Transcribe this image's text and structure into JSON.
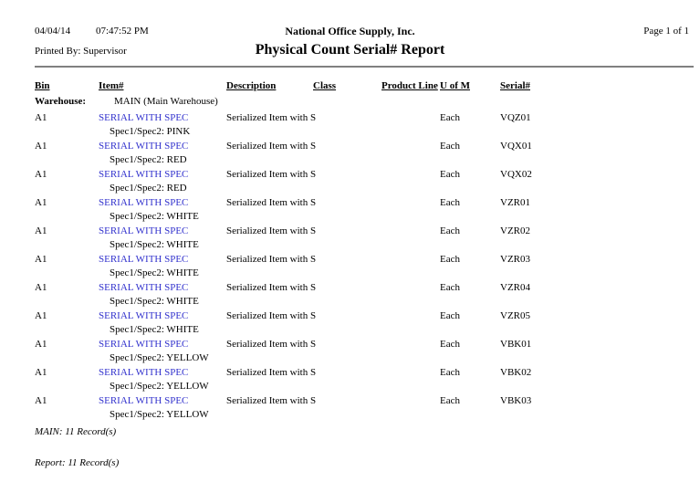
{
  "header": {
    "date": "04/04/14",
    "time": "07:47:52 PM",
    "printed_by": "Printed By: Supervisor",
    "company": "National Office Supply, Inc.",
    "title": "Physical Count Serial# Report",
    "page": "Page 1 of 1"
  },
  "table": {
    "columns": {
      "bin": "Bin",
      "item": "Item#",
      "description": "Description",
      "class": "Class",
      "product_line": "Product Line",
      "uofm": "U of M",
      "serial": "Serial#"
    },
    "warehouse_label": "Warehouse:",
    "warehouse_value": "MAIN (Main Warehouse)",
    "rows": [
      {
        "bin": "A1",
        "item": "SERIAL WITH SPEC",
        "spec": "Spec1/Spec2: PINK",
        "description": "Serialized Item with S",
        "class": "",
        "product_line": "",
        "uofm": "Each",
        "serial": "VQZ01"
      },
      {
        "bin": "A1",
        "item": "SERIAL WITH SPEC",
        "spec": "Spec1/Spec2: RED",
        "description": "Serialized Item with S",
        "class": "",
        "product_line": "",
        "uofm": "Each",
        "serial": "VQX01"
      },
      {
        "bin": "A1",
        "item": "SERIAL WITH SPEC",
        "spec": "Spec1/Spec2: RED",
        "description": "Serialized Item with S",
        "class": "",
        "product_line": "",
        "uofm": "Each",
        "serial": "VQX02"
      },
      {
        "bin": "A1",
        "item": "SERIAL WITH SPEC",
        "spec": "Spec1/Spec2: WHITE",
        "description": "Serialized Item with S",
        "class": "",
        "product_line": "",
        "uofm": "Each",
        "serial": "VZR01"
      },
      {
        "bin": "A1",
        "item": "SERIAL WITH SPEC",
        "spec": "Spec1/Spec2: WHITE",
        "description": "Serialized Item with S",
        "class": "",
        "product_line": "",
        "uofm": "Each",
        "serial": "VZR02"
      },
      {
        "bin": "A1",
        "item": "SERIAL WITH SPEC",
        "spec": "Spec1/Spec2: WHITE",
        "description": "Serialized Item with S",
        "class": "",
        "product_line": "",
        "uofm": "Each",
        "serial": "VZR03"
      },
      {
        "bin": "A1",
        "item": "SERIAL WITH SPEC",
        "spec": "Spec1/Spec2: WHITE",
        "description": "Serialized Item with S",
        "class": "",
        "product_line": "",
        "uofm": "Each",
        "serial": "VZR04"
      },
      {
        "bin": "A1",
        "item": "SERIAL WITH SPEC",
        "spec": "Spec1/Spec2: WHITE",
        "description": "Serialized Item with S",
        "class": "",
        "product_line": "",
        "uofm": "Each",
        "serial": "VZR05"
      },
      {
        "bin": "A1",
        "item": "SERIAL WITH SPEC",
        "spec": "Spec1/Spec2: YELLOW",
        "description": "Serialized Item with S",
        "class": "",
        "product_line": "",
        "uofm": "Each",
        "serial": "VBK01"
      },
      {
        "bin": "A1",
        "item": "SERIAL WITH SPEC",
        "spec": "Spec1/Spec2: YELLOW",
        "description": "Serialized Item with S",
        "class": "",
        "product_line": "",
        "uofm": "Each",
        "serial": "VBK02"
      },
      {
        "bin": "A1",
        "item": "SERIAL WITH SPEC",
        "spec": "Spec1/Spec2: YELLOW",
        "description": "Serialized Item with S",
        "class": "",
        "product_line": "",
        "uofm": "Each",
        "serial": "VBK03"
      }
    ]
  },
  "footer": {
    "group_total": "MAIN: 11 Record(s)",
    "report_total": "Report: 11 Record(s)"
  },
  "colors": {
    "link_blue": "#3232cd",
    "rule_gray": "#808080"
  }
}
